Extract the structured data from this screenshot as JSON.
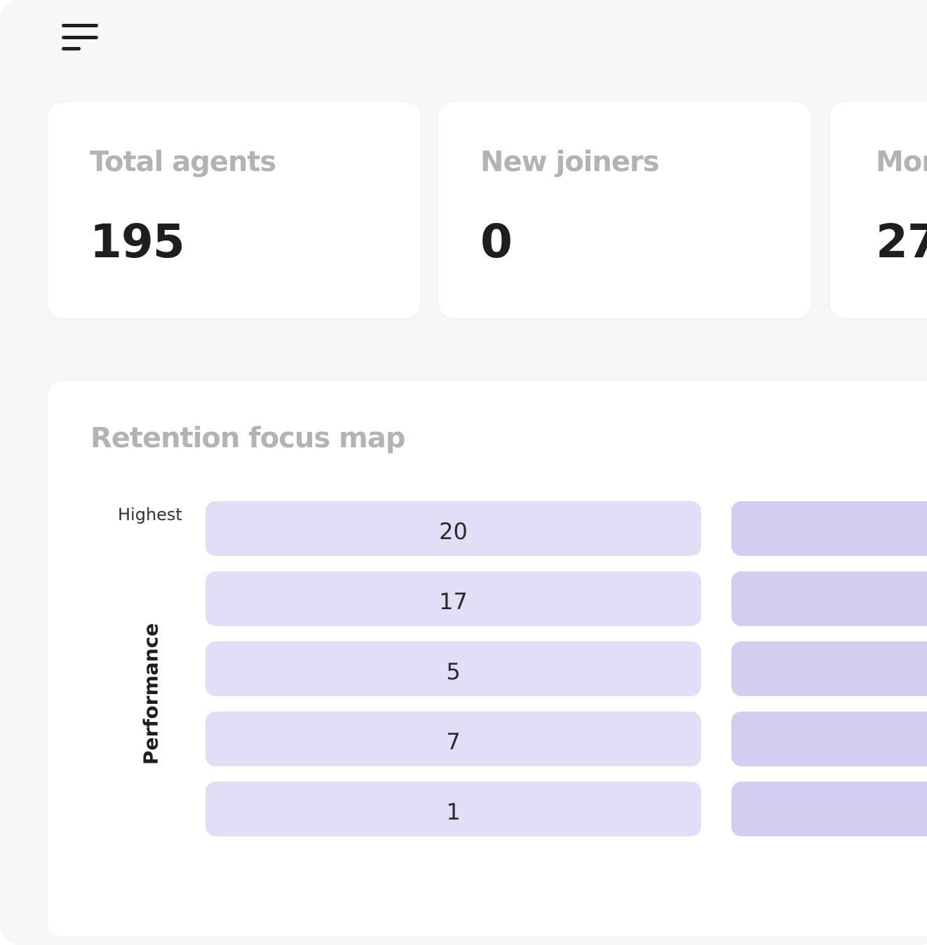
{
  "cards": [
    {
      "label": "Total agents",
      "value": "195"
    },
    {
      "label": "New joiners",
      "value": "0"
    },
    {
      "label": "Mor",
      "value": "27"
    }
  ],
  "retention": {
    "title": "Retention focus map",
    "top_label": "Highest",
    "y_axis_label": "Performance",
    "column1_values": [
      "20",
      "17",
      "5",
      "7",
      "1"
    ],
    "colors": {
      "column1": "#e1def7",
      "column2": "#d4cdf2"
    }
  }
}
